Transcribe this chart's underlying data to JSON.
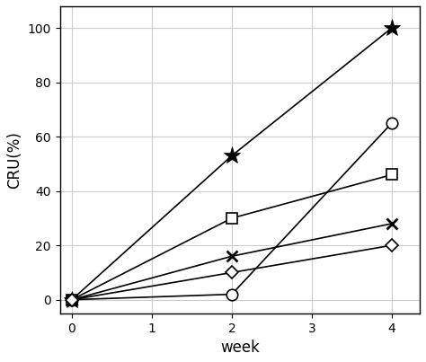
{
  "title": "",
  "xlabel": "week",
  "ylabel": "CRU(%)",
  "xlim": [
    -0.15,
    4.35
  ],
  "ylim": [
    -5,
    108
  ],
  "xticks": [
    0,
    1,
    2,
    3,
    4
  ],
  "yticks": [
    0,
    20,
    40,
    60,
    80,
    100
  ],
  "series": [
    {
      "x": [
        0,
        2,
        4
      ],
      "y": [
        0,
        53,
        100
      ],
      "marker": "*",
      "markersize": 14,
      "color": "black",
      "linewidth": 1.2,
      "markerfacecolor": "none"
    },
    {
      "x": [
        0,
        2,
        4
      ],
      "y": [
        0,
        2,
        65
      ],
      "marker": "o",
      "markersize": 9,
      "color": "black",
      "linewidth": 1.2,
      "markerfacecolor": "white"
    },
    {
      "x": [
        0,
        2,
        4
      ],
      "y": [
        0,
        30,
        46
      ],
      "marker": "s",
      "markersize": 8,
      "color": "black",
      "linewidth": 1.2,
      "markerfacecolor": "white"
    },
    {
      "x": [
        0,
        2,
        4
      ],
      "y": [
        0,
        16,
        28
      ],
      "marker": "x",
      "markersize": 9,
      "color": "black",
      "linewidth": 1.2,
      "markeredgewidth": 2.0
    },
    {
      "x": [
        0,
        2,
        4
      ],
      "y": [
        0,
        10,
        20
      ],
      "marker": "D",
      "markersize": 7,
      "color": "black",
      "linewidth": 1.2,
      "markerfacecolor": "white"
    }
  ],
  "background_color": "#ffffff",
  "grid": true,
  "grid_color": "#cccccc",
  "label_fontsize": 12,
  "tick_fontsize": 10,
  "figwidth": 4.74,
  "figheight": 4.03,
  "dpi": 100
}
